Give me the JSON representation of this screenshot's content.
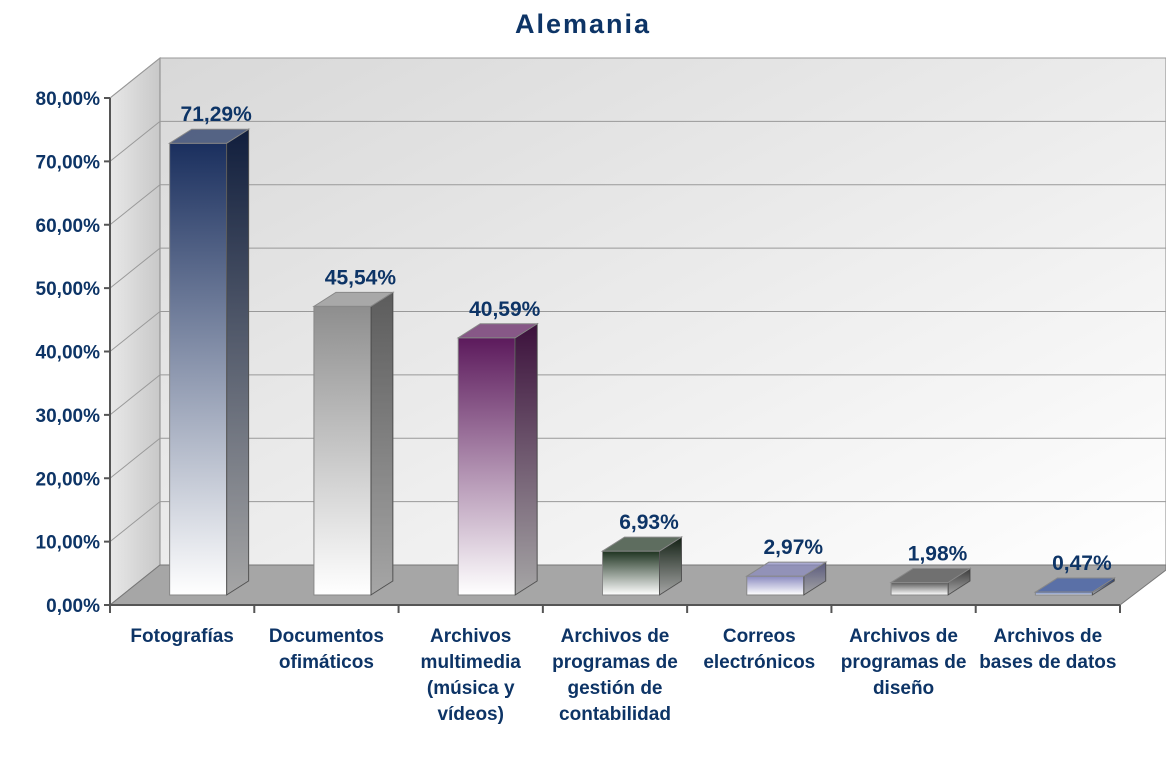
{
  "chart_data": {
    "type": "bar3d",
    "title": "Alemania",
    "categories": [
      "Fotografías",
      "Documentos ofimáticos",
      "Archivos multimedia (música y vídeos)",
      "Archivos de programas de gestión de contabilidad",
      "Correos electrónicos",
      "Archivos de programas de diseño",
      "Archivos de bases de datos"
    ],
    "values": [
      71.29,
      45.54,
      40.59,
      6.93,
      2.97,
      1.98,
      0.47
    ],
    "value_labels": [
      "71,29%",
      "45,54%",
      "40,59%",
      "6,93%",
      "2,97%",
      "1,98%",
      "0,47%"
    ],
    "colors": [
      "#1a2f5e",
      "#8e8e8e",
      "#5c1a5c",
      "#1e3320",
      "#8a8ac0",
      "#5a5a5a",
      "#3a5aa8"
    ],
    "ylim": [
      0,
      80
    ],
    "yticks": [
      {
        "value": 0,
        "label": "0,00%"
      },
      {
        "value": 10,
        "label": "10,00%"
      },
      {
        "value": 20,
        "label": "20,00%"
      },
      {
        "value": 30,
        "label": "30,00%"
      },
      {
        "value": 40,
        "label": "40,00%"
      },
      {
        "value": 50,
        "label": "50,00%"
      },
      {
        "value": 60,
        "label": "60,00%"
      },
      {
        "value": 70,
        "label": "70,00%"
      },
      {
        "value": 80,
        "label": "80,00%"
      }
    ],
    "grid": true
  }
}
